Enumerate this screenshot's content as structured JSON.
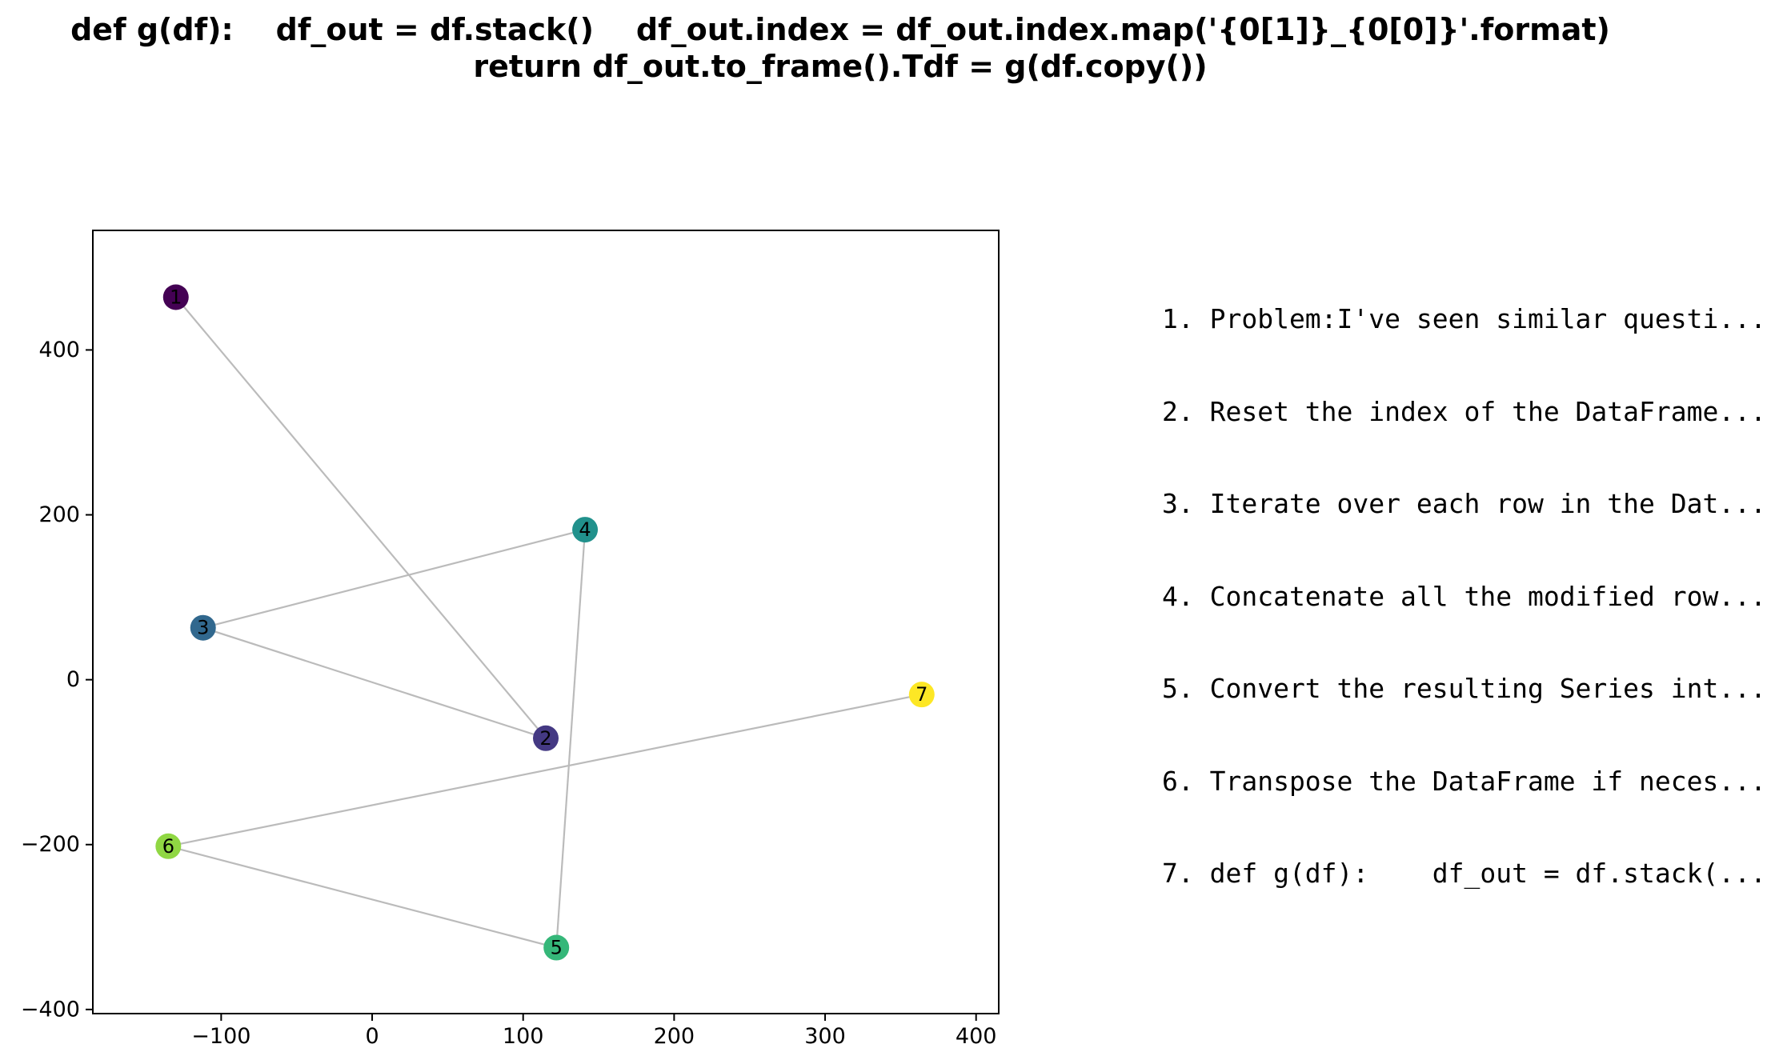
{
  "title_lines": [
    "def g(df):    df_out = df.stack()    df_out.index = df_out.index.map('{0[1]}_{0[0]}'.format)",
    "return df_out.to_frame().Tdf = g(df.copy())"
  ],
  "steps": [
    "1. Problem:I've seen similar questi...",
    "2. Reset the index of the DataFrame...",
    "3. Iterate over each row in the Dat...",
    "4. Concatenate all the modified row...",
    "5. Convert the resulting Series int...",
    "6. Transpose the DataFrame if neces...",
    "7. def g(df):    df_out = df.stack(..."
  ],
  "chart_data": {
    "type": "scatter",
    "xlim": [
      -185,
      415
    ],
    "ylim": [
      -405,
      545
    ],
    "xticks": [
      -100,
      0,
      100,
      200,
      300,
      400
    ],
    "xtick_labels": [
      "−100",
      "0",
      "100",
      "200",
      "300",
      "400"
    ],
    "yticks": [
      -400,
      -200,
      0,
      200,
      400
    ],
    "ytick_labels": [
      "−400",
      "−200",
      "0",
      "200",
      "400"
    ],
    "grid": false,
    "colormap": "viridis",
    "line_color": "#bbbbbb",
    "points": [
      {
        "label": "1",
        "x": -130,
        "y": 464,
        "color": "#440154"
      },
      {
        "label": "2",
        "x": 115,
        "y": -71,
        "color": "#443983"
      },
      {
        "label": "3",
        "x": -112,
        "y": 63,
        "color": "#31688e"
      },
      {
        "label": "4",
        "x": 141,
        "y": 182,
        "color": "#21918c"
      },
      {
        "label": "5",
        "x": 122,
        "y": -325,
        "color": "#35b779"
      },
      {
        "label": "6",
        "x": -135,
        "y": -202,
        "color": "#90d743"
      },
      {
        "label": "7",
        "x": 364,
        "y": -18,
        "color": "#fde725"
      }
    ],
    "edges": [
      [
        "1",
        "2"
      ],
      [
        "2",
        "3"
      ],
      [
        "3",
        "4"
      ],
      [
        "4",
        "5"
      ],
      [
        "5",
        "6"
      ],
      [
        "6",
        "7"
      ]
    ]
  }
}
